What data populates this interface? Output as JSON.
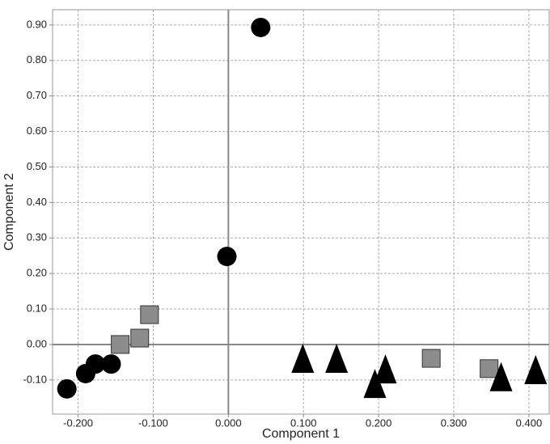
{
  "chart_data": {
    "type": "scatter",
    "x_label": "Component 1",
    "y_label": "Component 2",
    "xlim": [
      -0.234,
      0.427
    ],
    "ylim": [
      -0.196,
      0.943
    ],
    "xticks": [
      {
        "value": -0.2,
        "label": "-0.200"
      },
      {
        "value": -0.1,
        "label": "-0.100"
      },
      {
        "value": 0,
        "label": "0.000"
      },
      {
        "value": 0.1,
        "label": "0.100"
      },
      {
        "value": 0.2,
        "label": "0.200"
      },
      {
        "value": 0.3,
        "label": "0.300"
      },
      {
        "value": 0.4,
        "label": "0.400"
      }
    ],
    "yticks": [
      {
        "value": -0.1,
        "label": "-0.10"
      },
      {
        "value": 0,
        "label": "0.00"
      },
      {
        "value": 0.1,
        "label": "0.10"
      },
      {
        "value": 0.2,
        "label": "0.20"
      },
      {
        "value": 0.3,
        "label": "0.30"
      },
      {
        "value": 0.4,
        "label": "0.40"
      },
      {
        "value": 0.5,
        "label": "0.50"
      },
      {
        "value": 0.6,
        "label": "0.60"
      },
      {
        "value": 0.7,
        "label": "0.70"
      },
      {
        "value": 0.8,
        "label": "0.80"
      },
      {
        "value": 0.9,
        "label": "0.90"
      }
    ],
    "grid": true,
    "series": [
      {
        "marker": "circle",
        "color": "#000000",
        "x": [
          -0.215,
          -0.19,
          -0.177,
          -0.156,
          -0.002,
          0.043
        ],
        "y": [
          -0.125,
          -0.082,
          -0.055,
          -0.055,
          0.248,
          0.893
        ]
      },
      {
        "marker": "square",
        "color": "#8c8c8c",
        "x": [
          -0.105,
          -0.118,
          -0.144,
          0.27,
          0.347
        ],
        "y": [
          0.084,
          0.018,
          0.0,
          -0.039,
          -0.068
        ]
      },
      {
        "marker": "triangle",
        "color": "#000000",
        "x": [
          0.099,
          0.144,
          0.209,
          0.195,
          0.363,
          0.409
        ],
        "y": [
          -0.041,
          -0.041,
          -0.071,
          -0.112,
          -0.093,
          -0.073
        ]
      }
    ]
  }
}
